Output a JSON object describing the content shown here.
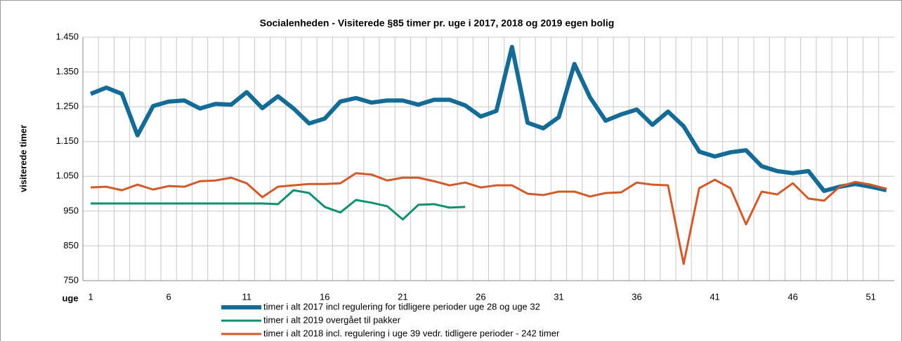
{
  "chart_data": {
    "type": "line",
    "title": "Socialenheden - Visiterede §85 timer pr. uge i 2017, 2018 og 2019 egen bolig",
    "y_label": "visiterede timer",
    "x_label": "uge",
    "x": [
      1,
      2,
      3,
      4,
      5,
      6,
      7,
      8,
      9,
      10,
      11,
      12,
      13,
      14,
      15,
      16,
      17,
      18,
      19,
      20,
      21,
      22,
      23,
      24,
      25,
      26,
      27,
      28,
      29,
      30,
      31,
      32,
      33,
      34,
      35,
      36,
      37,
      38,
      39,
      40,
      41,
      42,
      43,
      44,
      45,
      46,
      47,
      48,
      49,
      50,
      51,
      52
    ],
    "xlim": [
      0.5,
      52.5
    ],
    "xticks": [
      1,
      6,
      11,
      16,
      21,
      26,
      31,
      36,
      41,
      46,
      51
    ],
    "ylim": [
      750,
      1450
    ],
    "yticks": [
      {
        "value": 750,
        "label": "750"
      },
      {
        "value": 850,
        "label": "850"
      },
      {
        "value": 950,
        "label": "950"
      },
      {
        "value": 1050,
        "label": "1.050"
      },
      {
        "value": 1150,
        "label": "1.150"
      },
      {
        "value": 1250,
        "label": "1.250"
      },
      {
        "value": 1350,
        "label": "1.350"
      },
      {
        "value": 1450,
        "label": "1.450"
      }
    ],
    "grid": true,
    "legend_position": "bottom",
    "series": [
      {
        "name": "timer i alt 2017 incl regulering for tidligere perioder uge 28 og uge 32",
        "color": "#146b96",
        "width": 6,
        "values": [
          1287,
          1305,
          1287,
          1168,
          1252,
          1265,
          1268,
          1245,
          1258,
          1256,
          1292,
          1246,
          1280,
          1245,
          1202,
          1216,
          1265,
          1275,
          1262,
          1268,
          1268,
          1256,
          1270,
          1270,
          1254,
          1222,
          1238,
          1422,
          1204,
          1188,
          1220,
          1373,
          1277,
          1210,
          1228,
          1242,
          1198,
          1236,
          1194,
          1121,
          1107,
          1119,
          1125,
          1079,
          1065,
          1059,
          1065,
          1008,
          1020,
          1028,
          1020,
          1010
        ]
      },
      {
        "name": "timer i alt 2019 overgået til pakker",
        "color": "#11906f",
        "width": 3,
        "values": [
          972,
          972,
          972,
          972,
          972,
          972,
          972,
          972,
          972,
          972,
          972,
          972,
          970,
          1010,
          1002,
          962,
          946,
          982,
          974,
          964,
          926,
          968,
          970,
          960,
          962,
          null,
          null,
          null,
          null,
          null,
          null,
          null,
          null,
          null,
          null,
          null,
          null,
          null,
          null,
          null,
          null,
          null,
          null,
          null,
          null,
          null,
          null,
          null,
          null,
          null,
          null,
          null
        ]
      },
      {
        "name": "timer i alt 2018 incl. regulering i uge 39 vedr. tidligere perioder - 242 timer",
        "color": "#d15a2b",
        "width": 3,
        "values": [
          1018,
          1020,
          1010,
          1026,
          1012,
          1022,
          1020,
          1036,
          1038,
          1046,
          1030,
          990,
          1020,
          1024,
          1028,
          1028,
          1030,
          1059,
          1055,
          1038,
          1046,
          1046,
          1036,
          1024,
          1032,
          1018,
          1024,
          1024,
          1000,
          996,
          1006,
          1006,
          992,
          1002,
          1004,
          1032,
          1026,
          1024,
          798,
          1016,
          1040,
          1016,
          912,
          1006,
          998,
          1030,
          986,
          980,
          1020,
          1034,
          1026,
          1014
        ]
      }
    ]
  }
}
